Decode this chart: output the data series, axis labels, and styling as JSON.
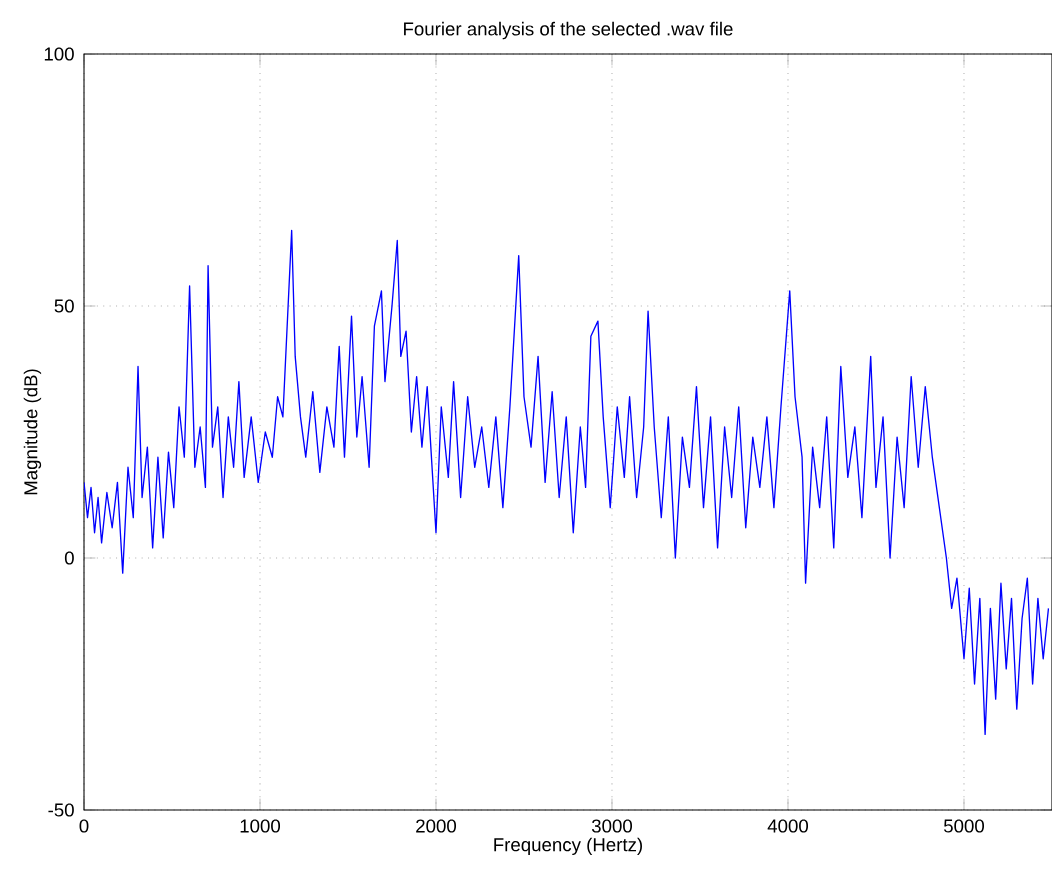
{
  "chart_data": {
    "type": "line",
    "title": "Fourier analysis of the selected .wav file",
    "xlabel": "Frequency (Hertz)",
    "ylabel": "Magnitude (dB)",
    "x": [
      0,
      20,
      40,
      60,
      80,
      100,
      130,
      160,
      190,
      220,
      250,
      280,
      307,
      330,
      360,
      390,
      420,
      450,
      480,
      510,
      540,
      570,
      600,
      630,
      660,
      690,
      705,
      730,
      760,
      790,
      820,
      850,
      880,
      910,
      950,
      990,
      1030,
      1070,
      1100,
      1130,
      1180,
      1200,
      1230,
      1260,
      1300,
      1340,
      1380,
      1420,
      1450,
      1480,
      1520,
      1550,
      1580,
      1620,
      1650,
      1690,
      1710,
      1750,
      1780,
      1800,
      1830,
      1860,
      1890,
      1920,
      1950,
      2000,
      2030,
      2070,
      2100,
      2140,
      2180,
      2220,
      2260,
      2300,
      2340,
      2380,
      2420,
      2470,
      2500,
      2540,
      2580,
      2620,
      2660,
      2700,
      2740,
      2780,
      2820,
      2850,
      2880,
      2920,
      2950,
      2990,
      3030,
      3070,
      3100,
      3140,
      3180,
      3205,
      3240,
      3280,
      3320,
      3360,
      3400,
      3440,
      3480,
      3520,
      3560,
      3600,
      3640,
      3680,
      3720,
      3760,
      3800,
      3840,
      3880,
      3920,
      3960,
      4010,
      4040,
      4080,
      4100,
      4140,
      4180,
      4220,
      4260,
      4300,
      4340,
      4380,
      4420,
      4470,
      4500,
      4540,
      4580,
      4620,
      4660,
      4700,
      4740,
      4780,
      4820,
      4860,
      4900,
      4930,
      4960,
      5000,
      5030,
      5060,
      5090,
      5120,
      5150,
      5180,
      5210,
      5240,
      5270,
      5300,
      5330,
      5360,
      5390,
      5420,
      5450,
      5480
    ],
    "series": [
      {
        "color": "#0000ff",
        "values": [
          15,
          8,
          14,
          5,
          12,
          3,
          13,
          6,
          15,
          -3,
          18,
          8,
          38,
          12,
          22,
          2,
          20,
          4,
          21,
          10,
          30,
          20,
          54,
          18,
          26,
          14,
          58,
          22,
          30,
          12,
          28,
          18,
          35,
          16,
          28,
          15,
          25,
          20,
          32,
          28,
          65,
          40,
          28,
          20,
          33,
          17,
          30,
          22,
          42,
          20,
          48,
          24,
          36,
          18,
          46,
          53,
          35,
          50,
          63,
          40,
          45,
          25,
          36,
          22,
          34,
          5,
          30,
          16,
          35,
          12,
          32,
          18,
          26,
          14,
          28,
          10,
          30,
          60,
          32,
          22,
          40,
          15,
          33,
          12,
          28,
          5,
          26,
          14,
          44,
          47,
          28,
          10,
          30,
          16,
          32,
          12,
          26,
          49,
          26,
          8,
          28,
          0,
          24,
          14,
          34,
          10,
          28,
          2,
          26,
          12,
          30,
          6,
          24,
          14,
          28,
          10,
          30,
          53,
          32,
          20,
          -5,
          22,
          10,
          28,
          2,
          38,
          16,
          26,
          8,
          40,
          14,
          28,
          0,
          24,
          10,
          36,
          18,
          34,
          20,
          10,
          0,
          -10,
          -4,
          -20,
          -6,
          -25,
          -8,
          -35,
          -10,
          -28,
          -5,
          -22,
          -8,
          -30,
          -12,
          -4,
          -25,
          -8,
          -20,
          -10
        ]
      }
    ],
    "xlim": [
      0,
      5500
    ],
    "ylim": [
      -50,
      100
    ],
    "xticks": [
      0,
      1000,
      2000,
      3000,
      4000,
      5000
    ],
    "yticks": [
      -50,
      0,
      50,
      100
    ],
    "grid": true,
    "line_style": "solid",
    "marker": "none"
  }
}
